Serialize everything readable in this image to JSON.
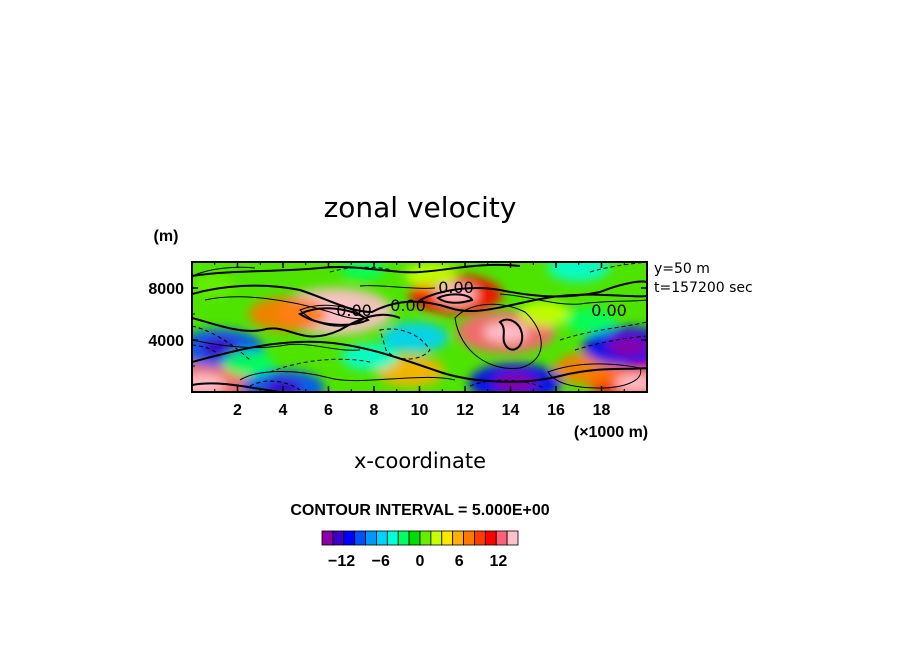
{
  "chart_data": {
    "type": "heatmap",
    "title": "zonal velocity",
    "xlabel": "x-coordinate",
    "x_unit_label": "(×1000 m)",
    "ylabel": "(m)",
    "xlim": [
      0,
      20
    ],
    "ylim": [
      0,
      10000
    ],
    "x_ticks": [
      "2",
      "4",
      "6",
      "8",
      "10",
      "12",
      "14",
      "16",
      "18"
    ],
    "y_ticks": [
      "4000",
      "8000"
    ],
    "annotations": [
      "y=50 m",
      "t=157200 sec"
    ],
    "contour_interval_text": "CONTOUR INTERVAL = 5.000E+00",
    "contour_labels": [
      "0.00",
      "0.00",
      "0.00",
      "0.00"
    ],
    "colorbar": {
      "min": -15,
      "max": 15,
      "tick_labels": [
        "−12",
        "−6",
        "0",
        "6",
        "12"
      ],
      "colors": [
        "#8b00a8",
        "#3c00c8",
        "#0000ff",
        "#0050ff",
        "#0098ff",
        "#00d2ff",
        "#00ffd8",
        "#00ff60",
        "#00dd00",
        "#66ee00",
        "#c8ff00",
        "#ffe600",
        "#ffb000",
        "#ff7800",
        "#ff3c00",
        "#ff0000",
        "#ff6078",
        "#ffc0cc"
      ]
    },
    "features": [
      {
        "x": 6.3,
        "y": 6200,
        "value": 15
      },
      {
        "x": 13.8,
        "y": 4600,
        "value": 12
      },
      {
        "x": 11.6,
        "y": 7500,
        "value": 11
      },
      {
        "x": 4.2,
        "y": 6000,
        "value": 8
      },
      {
        "x": 0.5,
        "y": 600,
        "value": 12
      },
      {
        "x": 19.5,
        "y": 700,
        "value": 11
      },
      {
        "x": 17.5,
        "y": 1800,
        "value": 7
      },
      {
        "x": 9.6,
        "y": 1600,
        "value": 6
      },
      {
        "x": 1.2,
        "y": 3400,
        "value": -10
      },
      {
        "x": 19.2,
        "y": 3500,
        "value": -11
      },
      {
        "x": 14.2,
        "y": 700,
        "value": -11
      },
      {
        "x": 4.0,
        "y": 300,
        "value": -9
      },
      {
        "x": 9.8,
        "y": 4200,
        "value": -6
      },
      {
        "x": 7.8,
        "y": 2700,
        "value": -4
      },
      {
        "x": 2.5,
        "y": 2200,
        "value": -3
      },
      {
        "x": 17.0,
        "y": 9600,
        "value": -5
      },
      {
        "x": 7.5,
        "y": 9500,
        "value": -2
      },
      {
        "x": 10.5,
        "y": 9000,
        "value": 3
      },
      {
        "x": 15.5,
        "y": 6000,
        "value": 3
      },
      {
        "x": 17.5,
        "y": 5500,
        "value": -3
      },
      {
        "x": 1.0,
        "y": 8200,
        "value": 1
      }
    ],
    "grid": false
  }
}
